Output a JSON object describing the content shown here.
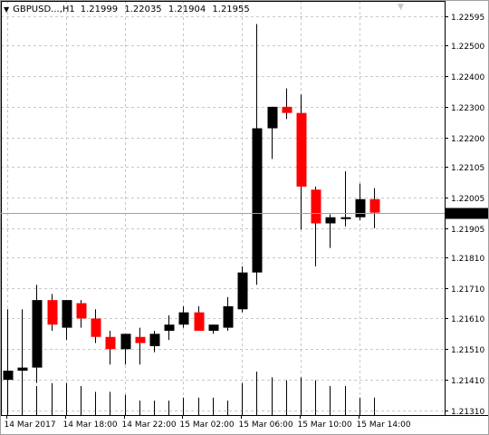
{
  "header": {
    "menu_arrow": "▼",
    "symbol": "GBPUSD...,H1",
    "ohlc": [
      "1.21999",
      "1.22035",
      "1.21904",
      "1.21955"
    ]
  },
  "scroll_arrow": "▼",
  "current_price": "1.21955",
  "colors": {
    "bull": "#000000",
    "bear": "#ff0000",
    "grid": "#c8c8c8",
    "price_label_bg": "#000000",
    "price_label_fg": "#ffffff"
  },
  "price_axis": [
    "1.22595",
    "1.22500",
    "1.22400",
    "1.22300",
    "1.22200",
    "1.22105",
    "1.22005",
    "1.21905",
    "1.21810",
    "1.21710",
    "1.21610",
    "1.21510",
    "1.21410",
    "1.21310"
  ],
  "time_axis": [
    "14 Mar 2017",
    "14 Mar 18:00",
    "14 Mar 22:00",
    "15 Mar 02:00",
    "15 Mar 06:00",
    "15 Mar 10:00",
    "15 Mar 14:00"
  ],
  "chart_data": {
    "type": "candlestick",
    "symbol": "GBPUSD",
    "timeframe": "H1",
    "ylim": [
      1.213,
      1.2262
    ],
    "candles": [
      {
        "o": 1.2141,
        "h": 1.2164,
        "l": 1.214,
        "c": 1.2144
      },
      {
        "o": 1.2144,
        "h": 1.2164,
        "l": 1.214,
        "c": 1.2145
      },
      {
        "o": 1.2145,
        "h": 1.2172,
        "l": 1.214,
        "c": 1.2167
      },
      {
        "o": 1.2167,
        "h": 1.2169,
        "l": 1.2157,
        "c": 1.2159
      },
      {
        "o": 1.2158,
        "h": 1.2167,
        "l": 1.2154,
        "c": 1.2167
      },
      {
        "o": 1.2166,
        "h": 1.2167,
        "l": 1.2158,
        "c": 1.2161
      },
      {
        "o": 1.2161,
        "h": 1.2164,
        "l": 1.2153,
        "c": 1.2155
      },
      {
        "o": 1.2155,
        "h": 1.2157,
        "l": 1.2146,
        "c": 1.2151
      },
      {
        "o": 1.2151,
        "h": 1.2156,
        "l": 1.2146,
        "c": 1.2156
      },
      {
        "o": 1.2155,
        "h": 1.2158,
        "l": 1.2146,
        "c": 1.2153
      },
      {
        "o": 1.2152,
        "h": 1.2157,
        "l": 1.215,
        "c": 1.2156
      },
      {
        "o": 1.2157,
        "h": 1.2162,
        "l": 1.2154,
        "c": 1.2159
      },
      {
        "o": 1.2159,
        "h": 1.2165,
        "l": 1.2158,
        "c": 1.2163
      },
      {
        "o": 1.2163,
        "h": 1.2165,
        "l": 1.2157,
        "c": 1.2157
      },
      {
        "o": 1.2157,
        "h": 1.2159,
        "l": 1.2156,
        "c": 1.2159
      },
      {
        "o": 1.2158,
        "h": 1.2168,
        "l": 1.2157,
        "c": 1.2165
      },
      {
        "o": 1.2164,
        "h": 1.2178,
        "l": 1.2163,
        "c": 1.2176
      },
      {
        "o": 1.2176,
        "h": 1.2257,
        "l": 1.2172,
        "c": 1.2223
      },
      {
        "o": 1.2223,
        "h": 1.223,
        "l": 1.2213,
        "c": 1.223
      },
      {
        "o": 1.223,
        "h": 1.2236,
        "l": 1.2226,
        "c": 1.2228
      },
      {
        "o": 1.2228,
        "h": 1.2234,
        "l": 1.219,
        "c": 1.2204
      },
      {
        "o": 1.2203,
        "h": 1.2204,
        "l": 1.2178,
        "c": 1.2192
      },
      {
        "o": 1.2192,
        "h": 1.2195,
        "l": 1.2184,
        "c": 1.2194
      },
      {
        "o": 1.2194,
        "h": 1.2209,
        "l": 1.2191,
        "c": 1.2194
      },
      {
        "o": 1.2194,
        "h": 1.2205,
        "l": 1.2193,
        "c": 1.21999
      },
      {
        "o": 1.21999,
        "h": 1.22035,
        "l": 1.21904,
        "c": 1.21955
      }
    ],
    "volume": [
      28,
      34,
      20,
      22,
      22,
      20,
      16,
      16,
      14,
      10,
      10,
      10,
      12,
      12,
      12,
      10,
      22,
      30,
      26,
      24,
      26,
      24,
      20,
      20,
      12,
      12
    ]
  }
}
